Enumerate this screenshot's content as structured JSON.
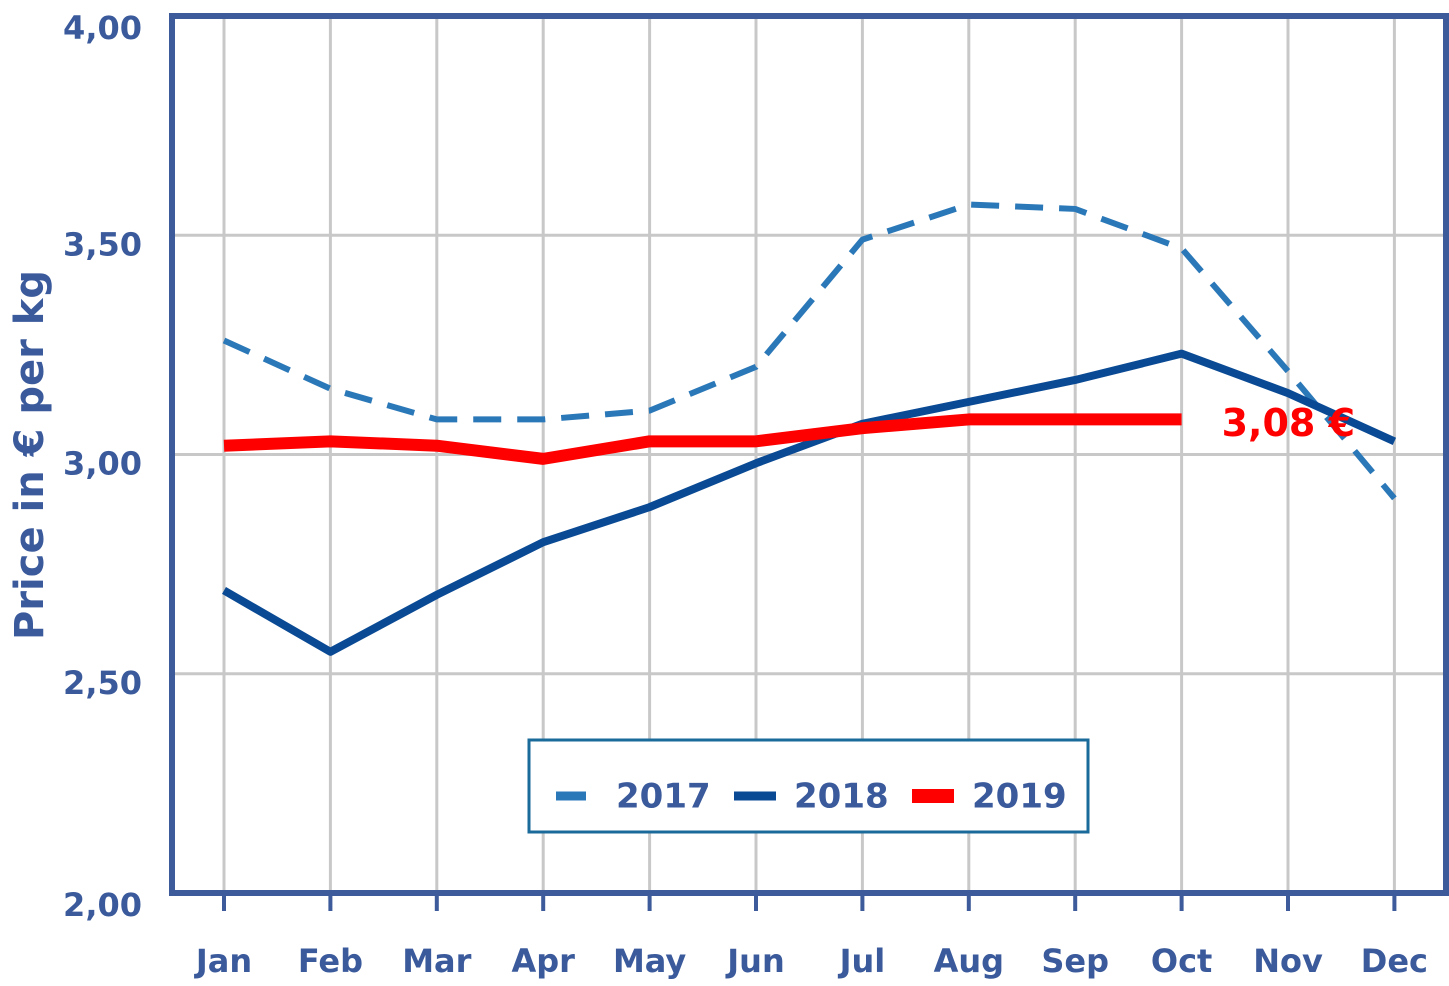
{
  "chart_data": {
    "type": "line",
    "y_label": "Price in € per kg",
    "categories": [
      "Jan",
      "Feb",
      "Mar",
      "Apr",
      "May",
      "Jun",
      "Jul",
      "Aug",
      "Sep",
      "Oct",
      "Nov",
      "Dec"
    ],
    "series": [
      {
        "name": "2017",
        "color": "#2b78b8",
        "dashed": true,
        "values": [
          3.26,
          3.15,
          3.08,
          3.08,
          3.1,
          3.2,
          3.49,
          3.57,
          3.56,
          3.47,
          3.19,
          2.9
        ]
      },
      {
        "name": "2018",
        "color": "#0a4a94",
        "values": [
          2.69,
          2.55,
          2.68,
          2.8,
          2.88,
          2.98,
          3.07,
          3.12,
          3.17,
          3.23,
          3.14,
          3.03
        ]
      },
      {
        "name": "2019",
        "color": "#ff0000",
        "values": [
          3.02,
          3.03,
          3.02,
          2.99,
          3.03,
          3.03,
          3.06,
          3.08,
          3.08,
          3.08,
          null,
          null
        ]
      }
    ],
    "annotation": "3,08 €",
    "ylim": [
      2,
      4
    ],
    "yticks": [
      {
        "value": 2,
        "label": "2,00"
      },
      {
        "value": 2.5,
        "label": "2,50"
      },
      {
        "value": 3,
        "label": "3,00"
      },
      {
        "value": 3.5,
        "label": "3,50"
      },
      {
        "value": 4,
        "label": "4,00"
      }
    ],
    "grid": true
  }
}
